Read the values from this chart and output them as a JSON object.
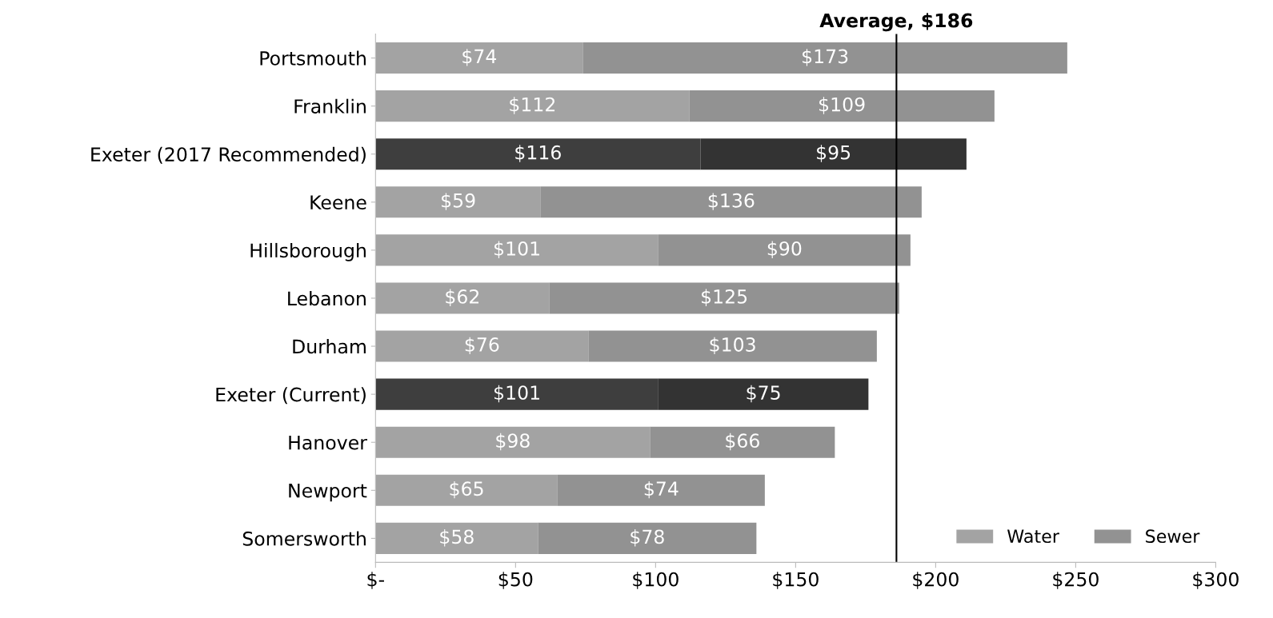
{
  "chart_data": {
    "type": "bar",
    "orientation": "horizontal",
    "stacked": true,
    "categories": [
      "Portsmouth",
      "Franklin",
      "Exeter (2017 Recommended)",
      "Keene",
      "Hillsborough",
      "Lebanon",
      "Durham",
      "Exeter (Current)",
      "Hanover",
      "Newport",
      "Somersworth"
    ],
    "series": [
      {
        "name": "Water",
        "color": "#a3a3a3",
        "colors": [
          "#a3a3a3",
          "#a3a3a3",
          "#3e3e3e",
          "#a3a3a3",
          "#a3a3a3",
          "#a3a3a3",
          "#a3a3a3",
          "#3e3e3e",
          "#a3a3a3",
          "#a3a3a3",
          "#a3a3a3"
        ],
        "values": [
          74,
          112,
          116,
          59,
          101,
          62,
          76,
          101,
          98,
          65,
          58
        ],
        "value_labels": [
          "$74",
          "$112",
          "$116",
          "$59",
          "$101",
          "$62",
          "$76",
          "$101",
          "$98",
          "$65",
          "$58"
        ]
      },
      {
        "name": "Sewer",
        "color": "#929292",
        "colors": [
          "#929292",
          "#929292",
          "#333333",
          "#929292",
          "#929292",
          "#929292",
          "#929292",
          "#333333",
          "#929292",
          "#929292",
          "#929292"
        ],
        "values": [
          173,
          109,
          95,
          136,
          90,
          125,
          103,
          75,
          66,
          74,
          78
        ],
        "value_labels": [
          "$173",
          "$109",
          "$95",
          "$136",
          "$90",
          "$125",
          "$103",
          "$75",
          "$66",
          "$74",
          "$78"
        ]
      }
    ],
    "xlim": [
      0,
      300
    ],
    "xticks": [
      {
        "value": 0,
        "label": "$-"
      },
      {
        "value": 50,
        "label": "$50"
      },
      {
        "value": 100,
        "label": "$100"
      },
      {
        "value": 150,
        "label": "$150"
      },
      {
        "value": 200,
        "label": "$200"
      },
      {
        "value": 250,
        "label": "$250"
      },
      {
        "value": 300,
        "label": "$300"
      }
    ],
    "ref_lines": [
      {
        "axis": "x",
        "value": 186,
        "label": "Average, $186",
        "color": "#000000"
      }
    ],
    "grid": false,
    "legend": "bottom right"
  }
}
